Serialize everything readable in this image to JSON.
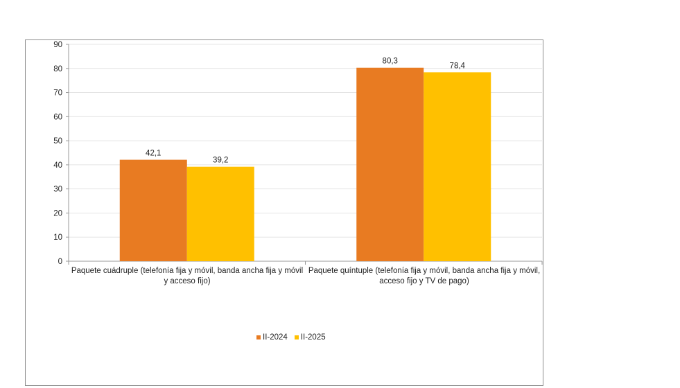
{
  "chart_data": {
    "type": "bar",
    "title": "",
    "xlabel": "",
    "ylabel": "",
    "ylim": [
      0,
      90
    ],
    "yticks": [
      0,
      10,
      20,
      30,
      40,
      50,
      60,
      70,
      80,
      90
    ],
    "grid": true,
    "legend_position": "bottom-center",
    "categories": [
      "Paquete cuádruple (telefonía fija y móvil, banda ancha fija y móvil y acceso fijo)",
      "Paquete quíntuple (telefonía fija y móvil, banda ancha fija y móvil, acceso fijo y TV de pago)"
    ],
    "series": [
      {
        "name": "II-2024",
        "color": "#e87b22",
        "values": [
          42.1,
          80.3
        ],
        "labels": [
          "42,1",
          "80,3"
        ]
      },
      {
        "name": "II-2025",
        "color": "#ffc000",
        "values": [
          39.2,
          78.4
        ],
        "labels": [
          "39,2",
          "78,4"
        ]
      }
    ]
  }
}
